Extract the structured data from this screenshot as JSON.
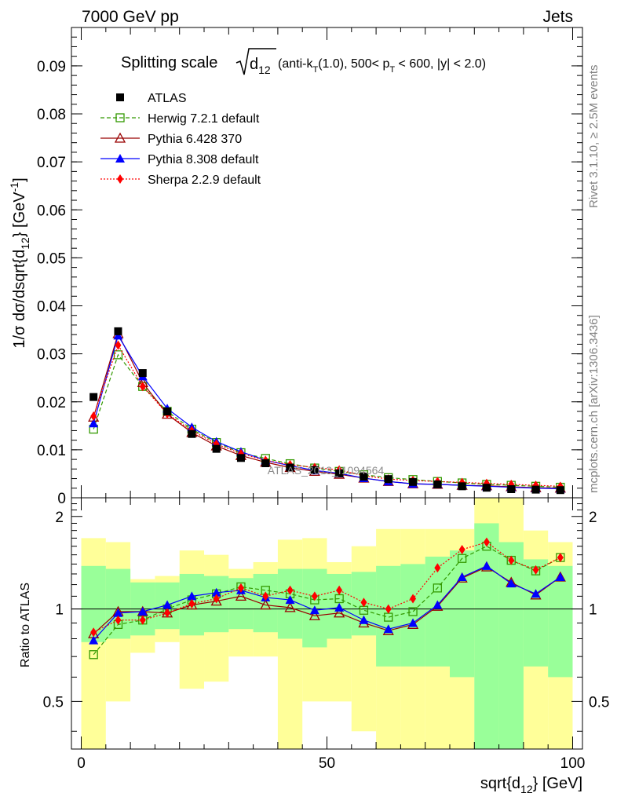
{
  "header": {
    "left": "7000 GeV pp",
    "right": "Jets"
  },
  "side_labels": {
    "rivet": "Rivet 3.1.10, ≥ 2.5M events",
    "mcplots": "mcplots.cern.ch [arXiv:1306.3436]"
  },
  "watermark": "ATLAS_2013_I1094564",
  "colors": {
    "atlas": "#000000",
    "herwig": "#339900",
    "pythia6": "#990000",
    "pythia8": "#0000ff",
    "sherpa": "#ff0000",
    "band_outer": "#ffff99",
    "band_inner": "#99ff99"
  },
  "chart_data": [
    {
      "type": "line",
      "title": "Splitting scale √d12 (anti-kT(1.0), 500< pT < 600, |y| < 2.0)",
      "title_parts": {
        "prefix": "Splitting scale ",
        "d": "d",
        "d_sub": "12",
        "mid1": " (anti-k",
        "kt_sub": "T",
        "mid2": "(1.0), 500< p",
        "pt_sub": "T",
        "suffix": " < 600, |y| < 2.0)"
      },
      "ylabel": "1/σ dσ/dsqrt{d12} [GeV-1]",
      "ylabel_parts": {
        "a": "1/σ dσ/dsqrt{d",
        "sub": "12",
        "b": "} [GeV",
        "sup": "-1",
        "c": "]"
      },
      "xlim": [
        -2,
        102
      ],
      "ylim": [
        0,
        0.098
      ],
      "yticks": [
        "0",
        "0.01",
        "0.02",
        "0.03",
        "0.04",
        "0.05",
        "0.06",
        "0.07",
        "0.08",
        "0.09"
      ],
      "legend_position": "top-left",
      "x": [
        2.5,
        7.5,
        12.5,
        17.5,
        22.5,
        27.5,
        32.5,
        37.5,
        42.5,
        47.5,
        52.5,
        57.5,
        62.5,
        67.5,
        72.5,
        77.5,
        82.5,
        87.5,
        92.5,
        97.5
      ],
      "series": [
        {
          "key": "atlas",
          "name": "ATLAS",
          "marker": "square-filled",
          "values": [
            0.021,
            0.0347,
            0.026,
            0.018,
            0.0133,
            0.0102,
            0.0083,
            0.0072,
            0.0063,
            0.0058,
            0.0051,
            0.0044,
            0.0039,
            0.0033,
            0.0028,
            0.0024,
            0.0021,
            0.0018,
            0.0017,
            0.0016
          ]
        },
        {
          "key": "herwig",
          "name": "Herwig 7.2.1 default",
          "marker": "square-open",
          "dash": "5,3",
          "values": [
            0.0143,
            0.0298,
            0.0232,
            0.018,
            0.0143,
            0.0115,
            0.0094,
            0.0082,
            0.0071,
            0.0062,
            0.0055,
            0.0048,
            0.0042,
            0.0038,
            0.0034,
            0.0031,
            0.0028,
            0.0026,
            0.0024,
            0.0022
          ]
        },
        {
          "key": "pythia6",
          "name": "Pythia 6.428 370",
          "marker": "triangle-open",
          "values": [
            0.0168,
            0.0342,
            0.024,
            0.0174,
            0.0136,
            0.0108,
            0.0088,
            0.0074,
            0.0063,
            0.0055,
            0.0049,
            0.0041,
            0.0034,
            0.0029,
            0.0028,
            0.0026,
            0.0025,
            0.0023,
            0.0021,
            0.002
          ]
        },
        {
          "key": "pythia8",
          "name": "Pythia 8.308 default",
          "marker": "triangle-filled",
          "values": [
            0.0155,
            0.0338,
            0.0253,
            0.0186,
            0.0147,
            0.0117,
            0.0096,
            0.0078,
            0.0067,
            0.0057,
            0.0051,
            0.0041,
            0.0034,
            0.0029,
            0.0028,
            0.0026,
            0.0024,
            0.0022,
            0.002,
            0.0019
          ]
        },
        {
          "key": "sherpa",
          "name": "Sherpa 2.2.9 default",
          "marker": "diamond-filled",
          "dash": "2,2",
          "values": [
            0.017,
            0.0318,
            0.0232,
            0.0175,
            0.014,
            0.0112,
            0.0092,
            0.0078,
            0.0069,
            0.0063,
            0.0058,
            0.0046,
            0.0039,
            0.0036,
            0.0034,
            0.0032,
            0.003,
            0.0028,
            0.0026,
            0.0024
          ]
        }
      ]
    },
    {
      "type": "line",
      "xlabel": "sqrt{d12} [GeV]",
      "xlabel_parts": {
        "a": "sqrt{d",
        "sub": "12",
        "b": "} [GeV]"
      },
      "ylabel": "Ratio to ATLAS",
      "xlim": [
        -2,
        102
      ],
      "ylim": [
        0.35,
        2.3
      ],
      "yticks": [
        "0.5",
        "1",
        "2"
      ],
      "xticks": [
        "0",
        "50",
        "100"
      ],
      "x": [
        2.5,
        7.5,
        12.5,
        17.5,
        22.5,
        27.5,
        32.5,
        37.5,
        42.5,
        47.5,
        52.5,
        57.5,
        62.5,
        67.5,
        72.5,
        77.5,
        82.5,
        87.5,
        92.5,
        97.5
      ],
      "bands": {
        "outer": [
          [
            0.35,
            1.7
          ],
          [
            0.5,
            1.65
          ],
          [
            0.72,
            1.25
          ],
          [
            0.78,
            1.28
          ],
          [
            0.55,
            1.55
          ],
          [
            0.58,
            1.5
          ],
          [
            0.7,
            1.35
          ],
          [
            0.7,
            1.42
          ],
          [
            0.35,
            1.68
          ],
          [
            0.5,
            1.7
          ],
          [
            0.5,
            1.42
          ],
          [
            0.4,
            1.6
          ],
          [
            0.35,
            1.82
          ],
          [
            0.35,
            1.82
          ],
          [
            0.35,
            1.82
          ],
          [
            0.35,
            1.82
          ],
          [
            0.35,
            2.3
          ],
          [
            0.35,
            2.3
          ],
          [
            0.35,
            1.8
          ],
          [
            0.35,
            1.65
          ]
        ],
        "inner": [
          [
            0.78,
            1.38
          ],
          [
            0.8,
            1.35
          ],
          [
            0.82,
            1.22
          ],
          [
            0.86,
            1.22
          ],
          [
            0.82,
            1.3
          ],
          [
            0.84,
            1.28
          ],
          [
            0.86,
            1.26
          ],
          [
            0.84,
            1.3
          ],
          [
            0.8,
            1.35
          ],
          [
            0.75,
            1.35
          ],
          [
            0.8,
            1.3
          ],
          [
            0.82,
            1.32
          ],
          [
            0.65,
            1.38
          ],
          [
            0.65,
            1.4
          ],
          [
            0.65,
            1.48
          ],
          [
            0.6,
            1.55
          ],
          [
            0.35,
            1.9
          ],
          [
            0.35,
            1.65
          ],
          [
            0.65,
            1.45
          ],
          [
            0.6,
            1.38
          ]
        ]
      },
      "series": [
        {
          "key": "herwig",
          "name": "Herwig 7.2.1 default",
          "marker": "square-open",
          "dash": "5,3",
          "values": [
            0.71,
            0.89,
            0.92,
            1.0,
            1.07,
            1.12,
            1.18,
            1.15,
            1.12,
            1.07,
            1.08,
            0.99,
            0.94,
            0.98,
            1.17,
            1.46,
            1.6,
            1.44,
            1.33,
            1.47
          ]
        },
        {
          "key": "pythia6",
          "name": "Pythia 6.428 370",
          "marker": "triangle-open",
          "values": [
            0.83,
            0.98,
            0.98,
            0.97,
            1.03,
            1.06,
            1.1,
            1.03,
            1.01,
            0.95,
            0.97,
            0.9,
            0.85,
            0.89,
            1.02,
            1.26,
            1.37,
            1.22,
            1.11,
            1.27
          ]
        },
        {
          "key": "pythia8",
          "name": "Pythia 8.308 default",
          "marker": "triangle-filled",
          "values": [
            0.79,
            0.97,
            0.98,
            1.03,
            1.1,
            1.13,
            1.15,
            1.09,
            1.07,
            0.99,
            1.01,
            0.92,
            0.86,
            0.9,
            1.03,
            1.27,
            1.38,
            1.21,
            1.12,
            1.27
          ]
        },
        {
          "key": "sherpa",
          "name": "Sherpa 2.2.9 default",
          "marker": "diamond-filled",
          "dash": "2,2",
          "values": [
            0.84,
            0.92,
            0.92,
            0.97,
            1.04,
            1.08,
            1.17,
            1.1,
            1.15,
            1.1,
            1.15,
            1.05,
            1.0,
            1.08,
            1.36,
            1.56,
            1.65,
            1.44,
            1.34,
            1.47
          ]
        }
      ]
    }
  ]
}
